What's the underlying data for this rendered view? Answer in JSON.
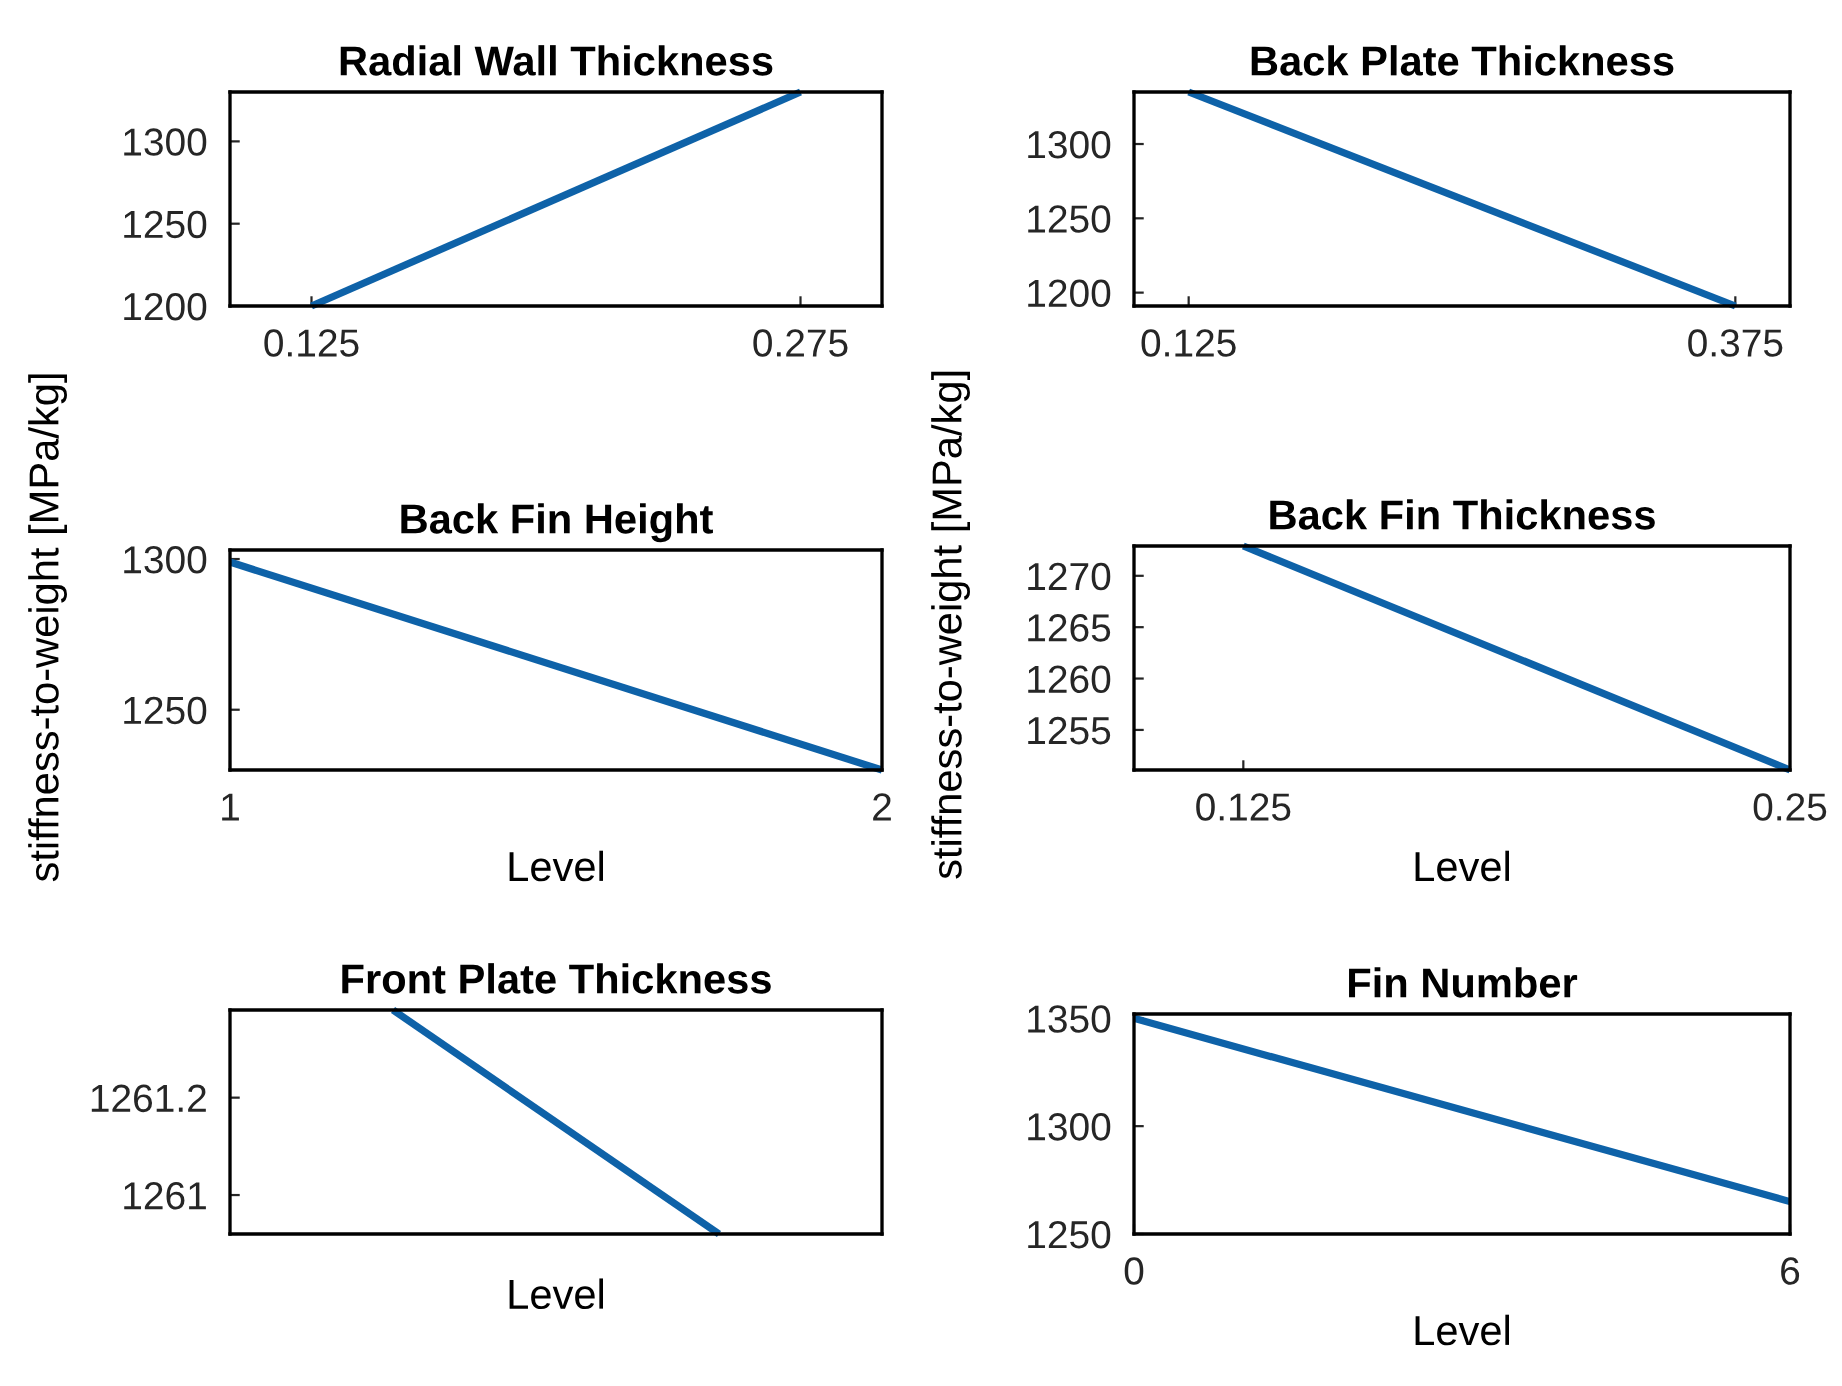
{
  "chart_data": [
    {
      "type": "line",
      "title": "Radial Wall Thickness",
      "x": [
        0.125,
        0.275
      ],
      "series": [
        {
          "color": "#0e62a8",
          "values": [
            1200,
            1330
          ]
        }
      ],
      "xlim": [
        0.1,
        0.3
      ],
      "ylim": [
        1200,
        1330
      ],
      "xticks": [
        0.125,
        0.275
      ],
      "yticks": [
        1200,
        1250,
        1300
      ],
      "grid": false
    },
    {
      "type": "line",
      "title": "Back Plate Thickness",
      "x": [
        0.125,
        0.375
      ],
      "series": [
        {
          "color": "#0e62a8",
          "values": [
            1335,
            1191
          ]
        }
      ],
      "xlim": [
        0.1,
        0.4
      ],
      "ylim": [
        1191,
        1335
      ],
      "xticks": [
        0.125,
        0.375
      ],
      "yticks": [
        1200,
        1250,
        1300
      ],
      "grid": false
    },
    {
      "type": "line",
      "title": "Back Fin Height",
      "xlabel": "Level",
      "ylabel": "stiffness-to-weight [MPa/kg]",
      "x": [
        1,
        2
      ],
      "series": [
        {
          "color": "#0e62a8",
          "values": [
            1299,
            1230
          ]
        }
      ],
      "xlim": [
        1,
        2
      ],
      "ylim": [
        1230,
        1303
      ],
      "xticks": [
        1,
        2
      ],
      "yticks": [
        1250,
        1300
      ],
      "grid": false
    },
    {
      "type": "line",
      "title": "Back Fin Thickness",
      "xlabel": "Level",
      "ylabel": "stiffness-to-weight [MPa/kg]",
      "x": [
        0.125,
        0.25
      ],
      "series": [
        {
          "color": "#0e62a8",
          "values": [
            1272.9,
            1251.1
          ]
        }
      ],
      "xlim": [
        0.1,
        0.25
      ],
      "ylim": [
        1251.1,
        1272.9
      ],
      "xticks": [
        0.125,
        0.25
      ],
      "yticks": [
        1255,
        1260,
        1265,
        1270
      ],
      "grid": false
    },
    {
      "type": "line",
      "title": "Front Plate Thickness",
      "xlabel": "Level",
      "categories": [
        null,
        null
      ],
      "series": [
        {
          "color": "#0e62a8",
          "values": [
            1261.38,
            1260.92
          ]
        }
      ],
      "ylim": [
        1260.92,
        1261.38
      ],
      "yticks": [
        1261,
        1261.2
      ],
      "grid": false
    },
    {
      "type": "line",
      "title": "Fin Number",
      "xlabel": "Level",
      "x": [
        0,
        6
      ],
      "series": [
        {
          "color": "#0e62a8",
          "values": [
            1350,
            1265
          ]
        }
      ],
      "xlim": [
        0,
        6
      ],
      "ylim": [
        1250,
        1352
      ],
      "xticks": [
        0,
        6
      ],
      "yticks": [
        1250,
        1300,
        1350
      ],
      "grid": false
    }
  ]
}
